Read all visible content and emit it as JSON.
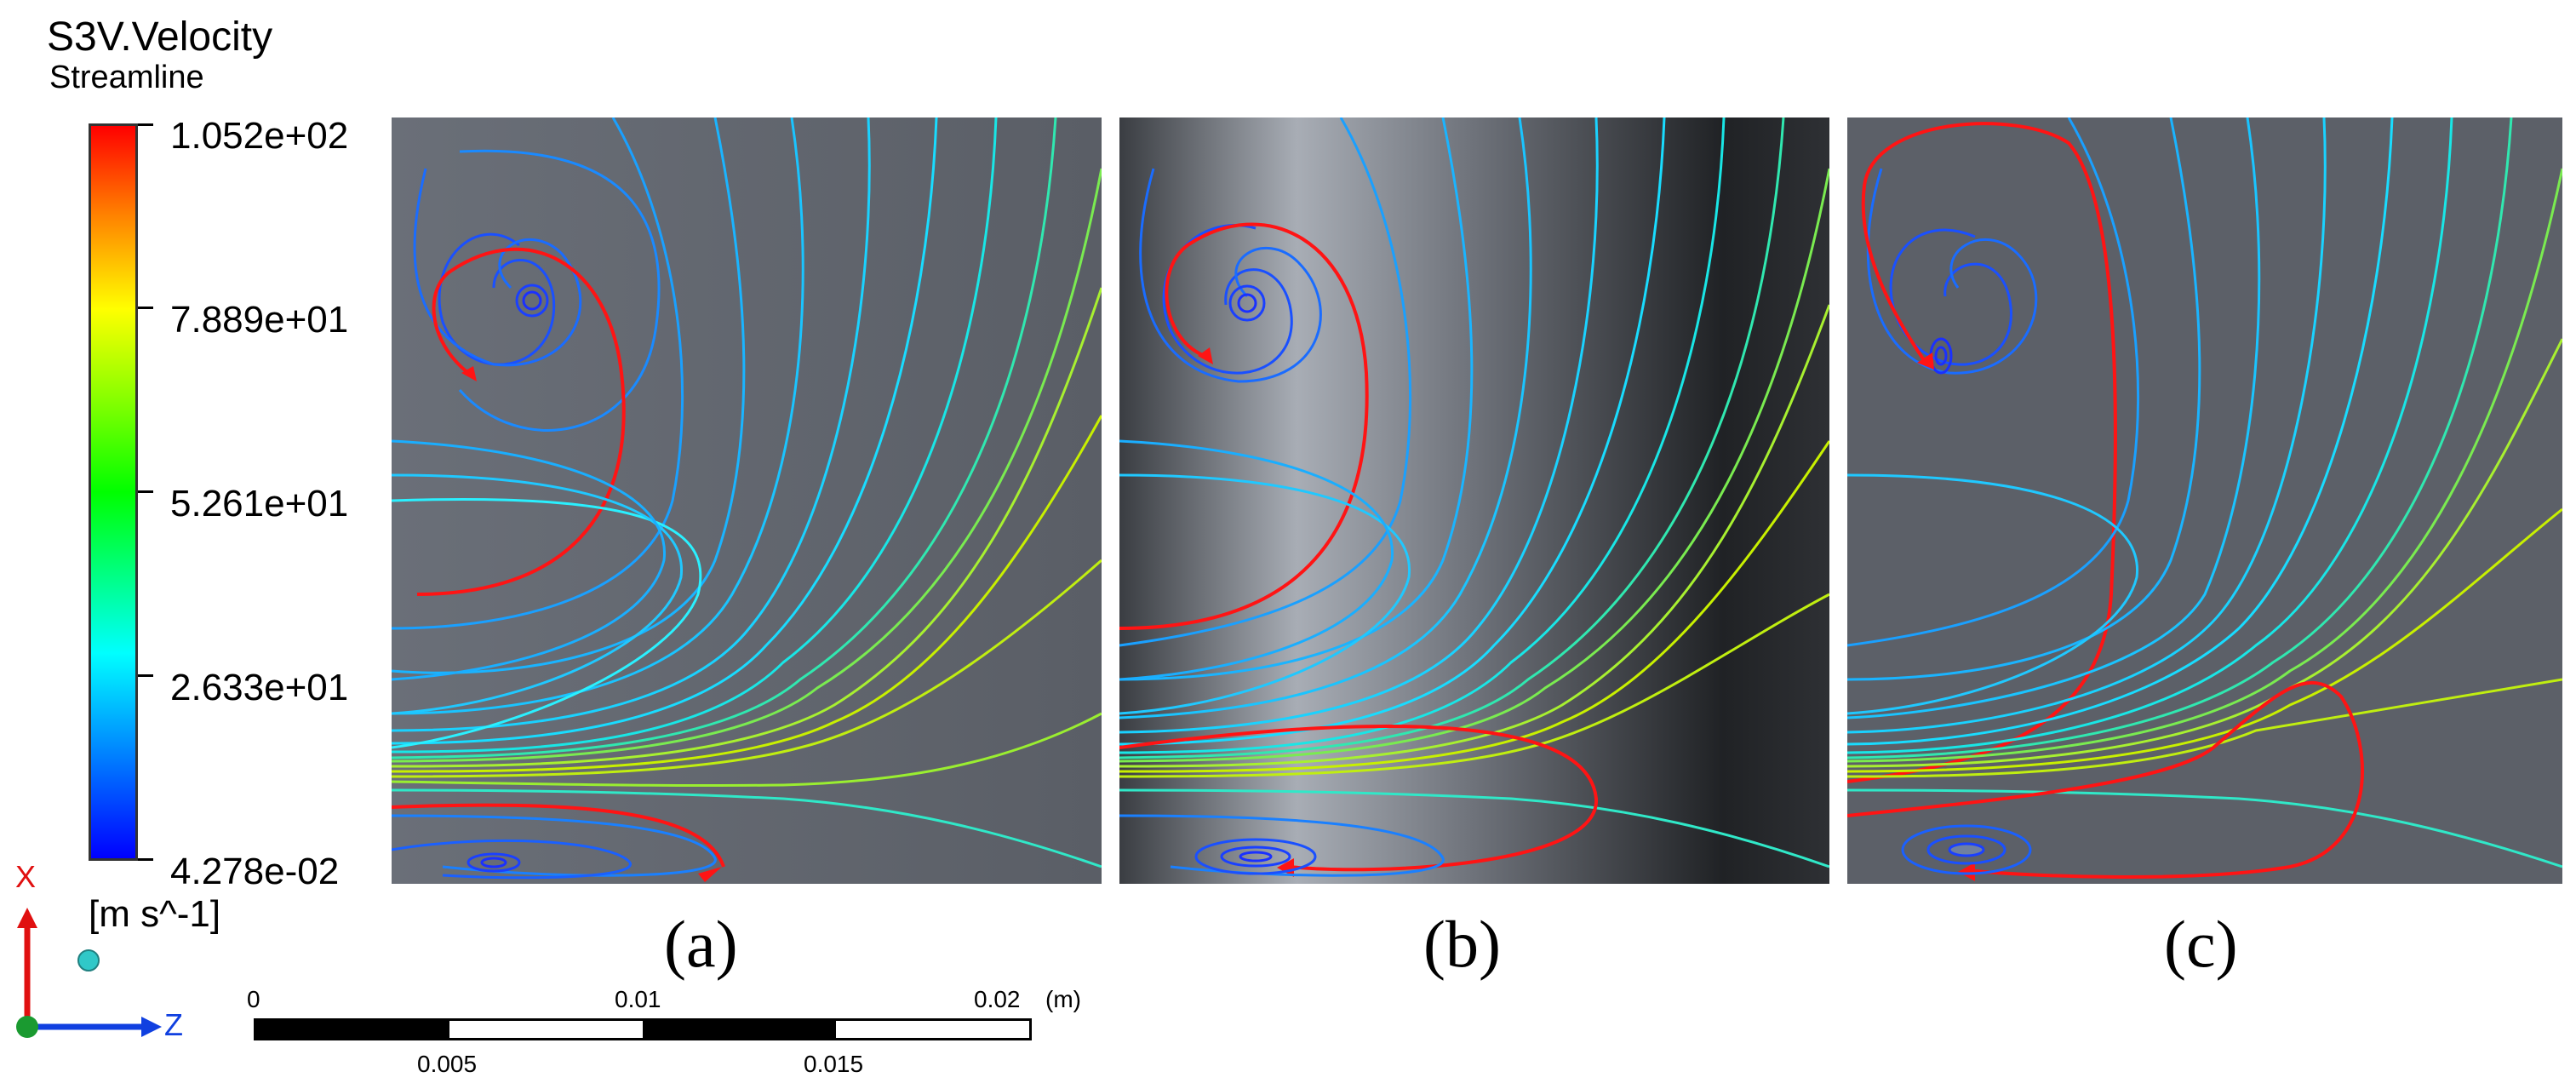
{
  "legend": {
    "title": "S3V.Velocity",
    "subtitle": "Streamline",
    "ticks": [
      "1.052e+02",
      "7.889e+01",
      "5.261e+01",
      "2.633e+01",
      "4.278e-02"
    ],
    "units": "[m s^-1]"
  },
  "axes": {
    "x_label": "X",
    "z_label": "Z"
  },
  "panels": [
    {
      "label": "(a)"
    },
    {
      "label": "(b)"
    },
    {
      "label": "(c)"
    }
  ],
  "scale": {
    "top_labels": [
      "0",
      "0.01",
      "0.02"
    ],
    "unit": "(m)",
    "bottom_labels": [
      "0.005",
      "0.015"
    ]
  },
  "colors": {
    "panel_bg": "#5c6068",
    "highlight_streamline": "#ff1010",
    "streamline_slow": "#1a40ff",
    "streamline_mid": "#19c8ff",
    "streamline_fast": "#c8f000"
  }
}
